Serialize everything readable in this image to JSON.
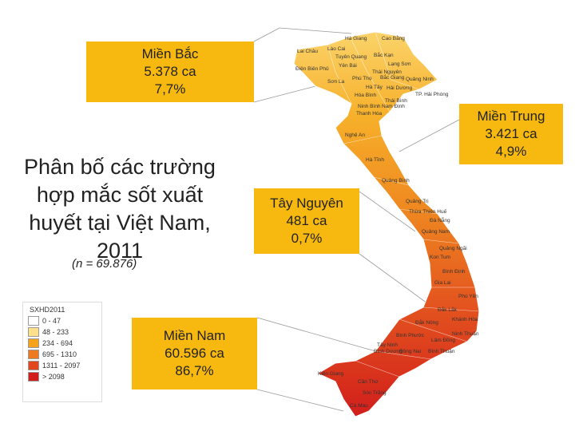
{
  "title_lines": [
    "Phân bố các trường",
    "hợp mắc sốt xuất",
    "huyết tại Việt Nam,",
    "2011"
  ],
  "sample_size": "(n = 69.876)",
  "callouts": [
    {
      "region": "Miền Bắc",
      "cases": "5.378 ca",
      "percent": "7,7%"
    },
    {
      "region": "Miền Trung",
      "cases": "3.421 ca",
      "percent": "4,9%"
    },
    {
      "region": "Tây Nguyên",
      "cases": "481 ca",
      "percent": "0,7%"
    },
    {
      "region": "Miền Nam",
      "cases": "60.596 ca",
      "percent": "86,7%"
    }
  ],
  "legend": {
    "title": "SXHD2011",
    "items": [
      {
        "label": "0 - 47",
        "color": "#ffffff"
      },
      {
        "label": "48 - 233",
        "color": "#fde08a"
      },
      {
        "label": "234 - 694",
        "color": "#f7a21b"
      },
      {
        "label": "695 - 1310",
        "color": "#ee7a1f"
      },
      {
        "label": "1311 - 2097",
        "color": "#e2481e"
      },
      {
        "label": "> 2098",
        "color": "#d21e1b"
      }
    ]
  },
  "map_labels": [
    "Hà Giang",
    "Cao Bằng",
    "Lai Châu",
    "Lào Cai",
    "Tuyên Quang",
    "Bắc Kạn",
    "Yên Bái",
    "Lạng Sơn",
    "Điện Biên Phủ",
    "Thái Nguyên",
    "Sơn La",
    "Phú Thọ",
    "Bắc Giang",
    "Quảng Ninh",
    "Hà Tây",
    "Hải Dương",
    "Hòa Bình",
    "TP. Hải Phòng",
    "Thái Bình",
    "Ninh Bình",
    "Nam Định",
    "Thanh Hóa",
    "Nghệ An",
    "Hà Tĩnh",
    "Quảng Bình",
    "Quảng Trị",
    "Thừa Thiên Huế",
    "Đà Nẵng",
    "Quảng Nam",
    "Quảng Ngãi",
    "Kon Tum",
    "Bình Định",
    "Gia Lai",
    "Phú Yên",
    "Đắk Lắk",
    "Khánh Hòa",
    "Đắk Nông",
    "Ninh Thuận",
    "Bình Phước",
    "Lâm Đồng",
    "Tây Ninh",
    "Bình Dương",
    "Đồng Nai",
    "Bình Thuận",
    "Kiên Giang",
    "Cần Thơ",
    "Sóc Trăng",
    "Cà Mau"
  ]
}
